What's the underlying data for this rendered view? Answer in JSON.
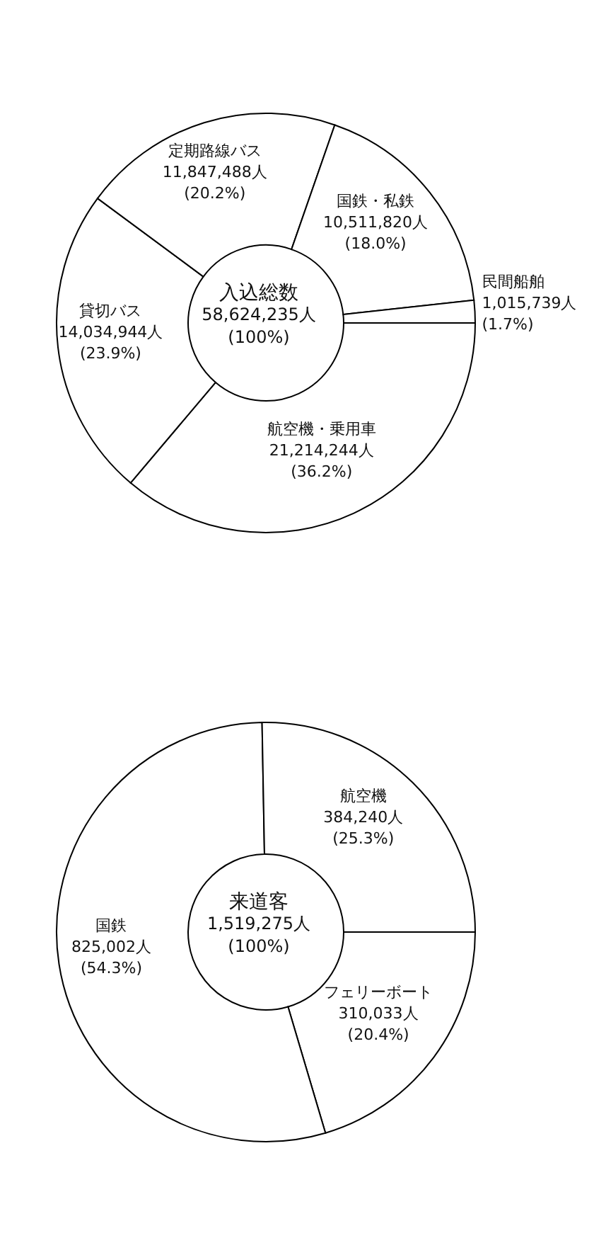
{
  "chart_data": [
    {
      "type": "donut",
      "title": "入込総数",
      "subtitle": "58,624,235人",
      "annotations": [
        "(100%)"
      ],
      "categories": [
        "航空機・乗用車",
        "貸切バス",
        "定期路線バス",
        "国鉄・私鉄",
        "民間船舶"
      ],
      "values": [
        21214244,
        14034944,
        11847488,
        10511820,
        1015739
      ],
      "colors": [
        "#ffffff",
        "#ffffff",
        "#ffffff",
        "#ffffff",
        "#ffffff"
      ],
      "value_labels": [
        "21,214,244人 (36.2%)",
        "14,034,944人 (23.9%)",
        "11,847,488人 (20.2%)",
        "10,511,820人 (18.0%)",
        "1,015,739人 (1.7%)"
      ]
    },
    {
      "type": "donut",
      "title": "来道客",
      "subtitle": "1,519,275人",
      "annotations": [
        "(100%)"
      ],
      "categories": [
        "フェリーボート",
        "国鉄",
        "航空機"
      ],
      "values": [
        310033,
        825002,
        384240
      ],
      "colors": [
        "#ffffff",
        "#ffffff",
        "#ffffff"
      ],
      "value_labels": [
        "310,033人 (20.4%)",
        "825,002人 (54.3%)",
        "384,240人 (25.3%)"
      ]
    }
  ]
}
